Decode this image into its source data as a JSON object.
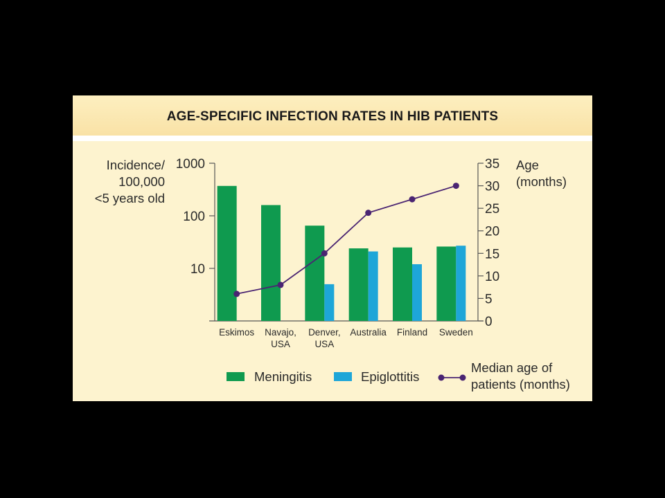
{
  "title": "AGE-SPECIFIC INFECTION RATES IN HIB PATIENTS",
  "colors": {
    "background": "#fdf3cf",
    "meningitis": "#0f9a4f",
    "epiglottitis": "#1ea6d8",
    "median_age": "#4a2472",
    "axis": "#555555"
  },
  "chart_data": {
    "type": "bar",
    "title": "AGE-SPECIFIC INFECTION RATES IN HIB PATIENTS",
    "categories": [
      "Eskimos",
      "Navajo, USA",
      "Denver, USA",
      "Australia",
      "Finland",
      "Sweden"
    ],
    "category_label_lines": [
      [
        "Eskimos"
      ],
      [
        "Navajo,",
        "USA"
      ],
      [
        "Denver,",
        "USA"
      ],
      [
        "Australia"
      ],
      [
        "Finland"
      ],
      [
        "Sweden"
      ]
    ],
    "y_left": {
      "label_lines": [
        "Incidence/",
        "100,000",
        "<5 years old"
      ],
      "scale": "log",
      "lim": [
        1,
        1000
      ],
      "ticks": [
        10,
        100,
        1000
      ],
      "tick_labels": [
        "10",
        "100",
        "1000"
      ]
    },
    "y_right": {
      "label_lines": [
        "Age",
        "(months)"
      ],
      "scale": "linear",
      "lim": [
        0,
        35
      ],
      "ticks": [
        0,
        5,
        10,
        15,
        20,
        25,
        30,
        35
      ],
      "tick_labels": [
        "0",
        "5",
        "10",
        "15",
        "20",
        "25",
        "30",
        "35"
      ]
    },
    "series": [
      {
        "name": "Meningitis",
        "type": "bar",
        "axis": "left",
        "values": [
          370,
          160,
          65,
          24,
          25,
          26
        ]
      },
      {
        "name": "Epiglottitis",
        "type": "bar",
        "axis": "left",
        "values": [
          null,
          null,
          5,
          21,
          12,
          27
        ]
      },
      {
        "name": "Median age of patients (months)",
        "type": "line",
        "axis": "right",
        "values": [
          6,
          8,
          15,
          24,
          27,
          30
        ]
      }
    ],
    "legend": {
      "position": "bottom",
      "items": [
        {
          "kind": "bar",
          "label_lines": [
            "Meningitis"
          ]
        },
        {
          "kind": "bar",
          "label_lines": [
            "Epiglottitis"
          ]
        },
        {
          "kind": "line",
          "label_lines": [
            "Median age of",
            "patients (months)"
          ]
        }
      ]
    },
    "grid": false
  }
}
